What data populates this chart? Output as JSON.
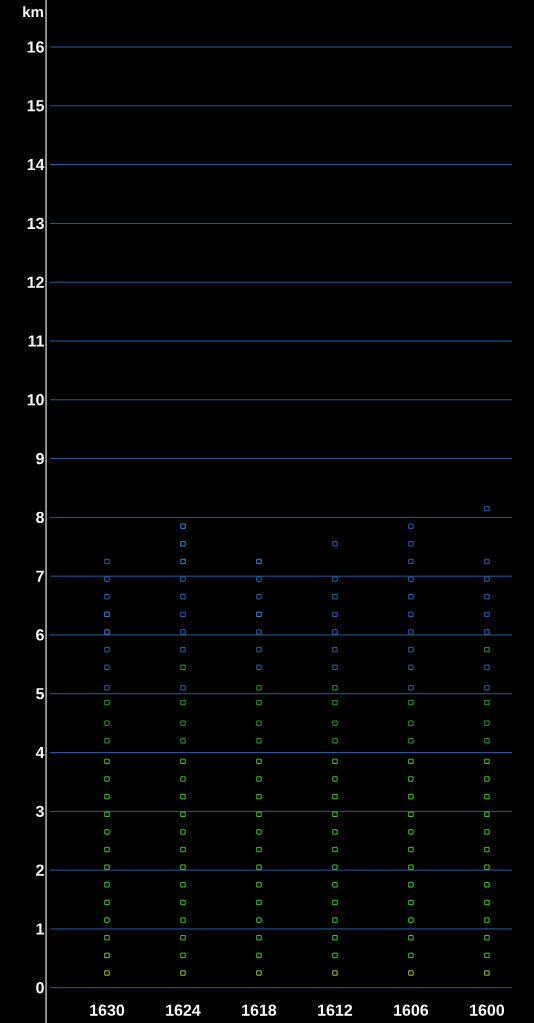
{
  "chart_data": {
    "type": "scatter",
    "ylabel": "km",
    "categories": [
      "1630",
      "1624",
      "1618",
      "1612",
      "1606",
      "1600"
    ],
    "ylim": [
      -0.6,
      16.8
    ],
    "yticks": [
      0,
      1,
      2,
      3,
      4,
      5,
      6,
      7,
      8,
      9,
      10,
      11,
      12,
      13,
      14,
      15,
      16
    ],
    "grid": "y",
    "marker": "square",
    "series": [
      {
        "values": [
          0.25,
          0.25,
          0.25,
          0.25,
          0.25,
          0.25
        ],
        "colors": [
          "#b0e020",
          "#b0e020",
          "#b0e020",
          "#b0e020",
          "#b0e020",
          "#b0e020"
        ]
      },
      {
        "values": [
          0.55,
          0.55,
          0.55,
          0.55,
          0.55,
          0.55
        ],
        "colors": [
          "#90e020",
          "#44e030",
          "#44e030",
          "#44e030",
          "#44e030",
          "#44e030"
        ]
      },
      {
        "values": [
          0.85,
          0.85,
          0.85,
          0.85,
          0.85,
          0.85
        ],
        "colors": [
          "#44e030",
          "#44e030",
          "#44e030",
          "#44e030",
          "#44e030",
          "#44e030"
        ]
      },
      {
        "values": [
          1.15,
          1.15,
          1.15,
          1.15,
          1.15,
          1.15
        ],
        "colors": [
          "#44e030",
          "#44e030",
          "#44e030",
          "#44e030",
          "#44e030",
          "#44e030"
        ]
      },
      {
        "values": [
          1.45,
          1.45,
          1.45,
          1.45,
          1.45,
          1.45
        ],
        "colors": [
          "#44e030",
          "#44e030",
          "#44e030",
          "#44e030",
          "#44e030",
          "#44e030"
        ]
      },
      {
        "values": [
          1.75,
          1.75,
          1.75,
          1.75,
          1.75,
          1.75
        ],
        "colors": [
          "#44e030",
          "#44e030",
          "#44e030",
          "#44e030",
          "#44e030",
          "#44e030"
        ]
      },
      {
        "values": [
          2.05,
          2.05,
          2.05,
          2.05,
          2.05,
          2.05
        ],
        "colors": [
          "#44e030",
          "#44e030",
          "#44e030",
          "#44e030",
          "#44e030",
          "#44e030"
        ]
      },
      {
        "values": [
          2.35,
          2.35,
          2.35,
          2.35,
          2.35,
          2.35
        ],
        "colors": [
          "#44e030",
          "#44e030",
          "#44e030",
          "#44e030",
          "#44e030",
          "#44e030"
        ]
      },
      {
        "values": [
          2.65,
          2.65,
          2.65,
          2.65,
          2.65,
          2.65
        ],
        "colors": [
          "#44e030",
          "#44e030",
          "#44e030",
          "#44e030",
          "#44e030",
          "#44e030"
        ]
      },
      {
        "values": [
          2.95,
          2.95,
          2.95,
          2.95,
          2.95,
          2.95
        ],
        "colors": [
          "#44e030",
          "#44e030",
          "#44e030",
          "#44e030",
          "#44e030",
          "#44e030"
        ]
      },
      {
        "values": [
          3.25,
          3.25,
          3.25,
          3.25,
          3.25,
          3.25
        ],
        "colors": [
          "#44e030",
          "#44e030",
          "#44e030",
          "#44e030",
          "#44e030",
          "#44e030"
        ]
      },
      {
        "values": [
          3.55,
          3.55,
          3.55,
          3.55,
          3.55,
          3.55
        ],
        "colors": [
          "#44e030",
          "#44e030",
          "#44e030",
          "#44e030",
          "#44e030",
          "#44e030"
        ]
      },
      {
        "values": [
          3.85,
          3.85,
          3.85,
          3.85,
          3.85,
          3.85
        ],
        "colors": [
          "#44e030",
          "#44e030",
          "#44e030",
          "#44e030",
          "#44e030",
          "#44e030"
        ]
      },
      {
        "values": [
          4.2,
          4.2,
          4.2,
          4.2,
          4.2,
          4.2
        ],
        "colors": [
          "#2ab02a",
          "#2ab02a",
          "#2ab02a",
          "#2ab02a",
          "#2ab02a",
          "#2ab02a"
        ]
      },
      {
        "values": [
          4.5,
          4.5,
          4.5,
          4.5,
          4.5,
          4.5
        ],
        "colors": [
          "#2ab02a",
          "#2ab02a",
          "#2ab02a",
          "#2ab02a",
          "#2ab02a",
          "#2ab02a"
        ]
      },
      {
        "values": [
          4.85,
          4.85,
          4.85,
          4.85,
          4.85,
          4.85
        ],
        "colors": [
          "#2ab02a",
          "#2ab02a",
          "#2ab02a",
          "#2ab02a",
          "#2ab02a",
          "#2ab02a"
        ]
      },
      {
        "values": [
          5.1,
          5.1,
          5.1,
          5.1,
          5.1,
          5.1
        ],
        "colors": [
          "#2a6fc0",
          "#2a6fc0",
          "#2ab02a",
          "#2ab02a",
          "#2a6fc0",
          "#2a6fc0"
        ]
      },
      {
        "values": [
          5.45,
          5.45,
          5.45,
          5.45,
          5.45,
          5.45
        ],
        "colors": [
          "#2a6fc0",
          "#2ab02a",
          "#2a6fc0",
          "#2a6fc0",
          "#2a6fc0",
          "#2a6fc0"
        ]
      },
      {
        "values": [
          5.75,
          5.75,
          5.75,
          5.75,
          5.75,
          5.75
        ],
        "colors": [
          "#2a6fc0",
          "#2a6fc0",
          "#2a6fc0",
          "#2a6fc0",
          "#2a6fc0",
          "#2ab02a"
        ]
      },
      {
        "values": [
          6.05,
          6.05,
          6.05,
          6.05,
          6.05,
          6.05
        ],
        "colors": [
          "#3a9cf0",
          "#2a6fc0",
          "#2a6fc0",
          "#2a6fc0",
          "#2a6fc0",
          "#2a6fc0"
        ]
      },
      {
        "values": [
          6.35,
          6.35,
          6.35,
          6.35,
          6.35,
          6.35
        ],
        "colors": [
          "#3a9cf0",
          "#2a6fc0",
          "#3a9cf0",
          "#2a6fc0",
          "#2a6fc0",
          "#2a6fc0"
        ]
      },
      {
        "values": [
          6.65,
          6.65,
          6.65,
          6.65,
          6.65,
          6.65
        ],
        "colors": [
          "#2a6fc0",
          "#2a6fc0",
          "#2a6fc0",
          "#2a6fc0",
          "#2a6fc0",
          "#2a6fc0"
        ]
      },
      {
        "values": [
          6.95,
          6.95,
          6.95,
          6.95,
          6.95,
          6.95
        ],
        "colors": [
          "#2a6fc0",
          "#2a6fc0",
          "#2a6fc0",
          "#2a6fc0",
          "#2a6fc0",
          "#2a6fc0"
        ]
      },
      {
        "values": [
          7.25,
          7.25,
          7.25,
          null,
          7.25,
          7.25
        ],
        "colors": [
          "#2a6fc0",
          "#3a9cf0",
          "#3a9cf0",
          null,
          "#2a6fc0",
          "#2a6fc0"
        ]
      },
      {
        "values": [
          null,
          7.55,
          null,
          7.55,
          7.55,
          null
        ],
        "colors": [
          null,
          "#3a9cf0",
          null,
          "#2a6fc0",
          "#2a6fc0",
          null
        ]
      },
      {
        "values": [
          null,
          7.85,
          null,
          null,
          7.85,
          null
        ],
        "colors": [
          null,
          "#3a9cf0",
          null,
          null,
          "#2a6fc0",
          null
        ]
      },
      {
        "values": [
          null,
          null,
          null,
          null,
          null,
          8.15
        ],
        "colors": [
          null,
          null,
          null,
          null,
          null,
          "#2a6fc0"
        ]
      }
    ]
  }
}
